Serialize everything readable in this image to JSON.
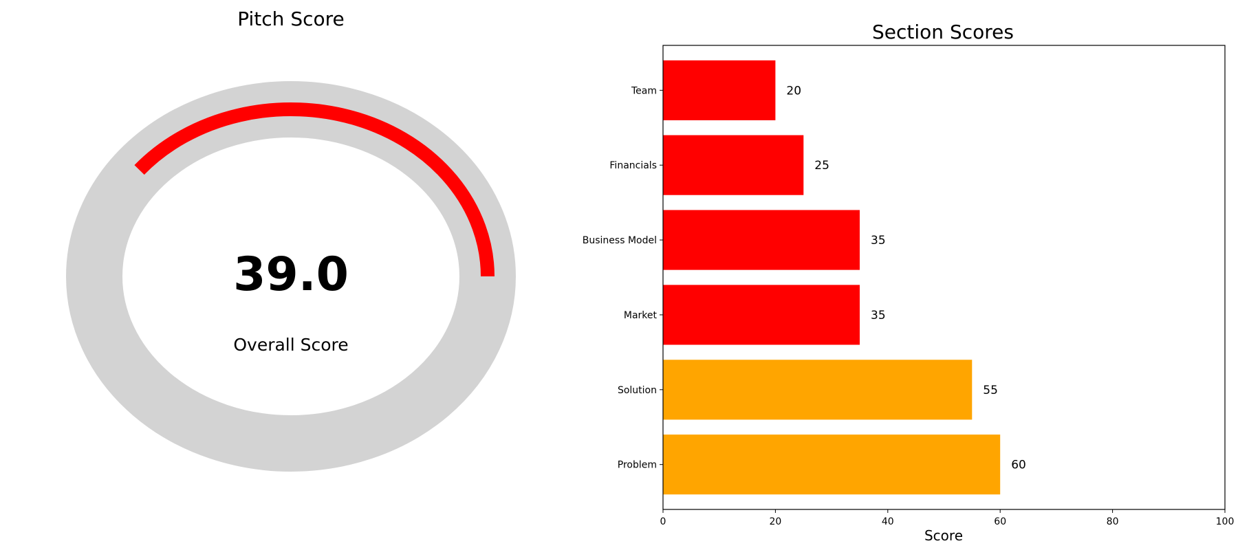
{
  "gauge": {
    "title": "Pitch Score",
    "value_text": "39.0",
    "subtitle": "Overall Score",
    "value": 39.0,
    "max": 100,
    "arc_color": "#ff0000",
    "track_color": "#d3d3d3"
  },
  "chart_data": {
    "type": "bar",
    "orientation": "horizontal",
    "title": "Section Scores",
    "xlabel": "Score",
    "ylabel": "",
    "categories": [
      "Problem",
      "Solution",
      "Market",
      "Business Model",
      "Financials",
      "Team"
    ],
    "values": [
      60,
      55,
      35,
      35,
      25,
      20
    ],
    "value_labels": [
      "60",
      "55",
      "35",
      "35",
      "25",
      "20"
    ],
    "colors": [
      "#ffa500",
      "#ffa500",
      "#ff0000",
      "#ff0000",
      "#ff0000",
      "#ff0000"
    ],
    "xlim": [
      0,
      100
    ],
    "xticks": [
      0,
      20,
      40,
      60,
      80,
      100
    ],
    "xtick_labels": [
      "0",
      "20",
      "40",
      "60",
      "80",
      "100"
    ],
    "grid": false
  }
}
